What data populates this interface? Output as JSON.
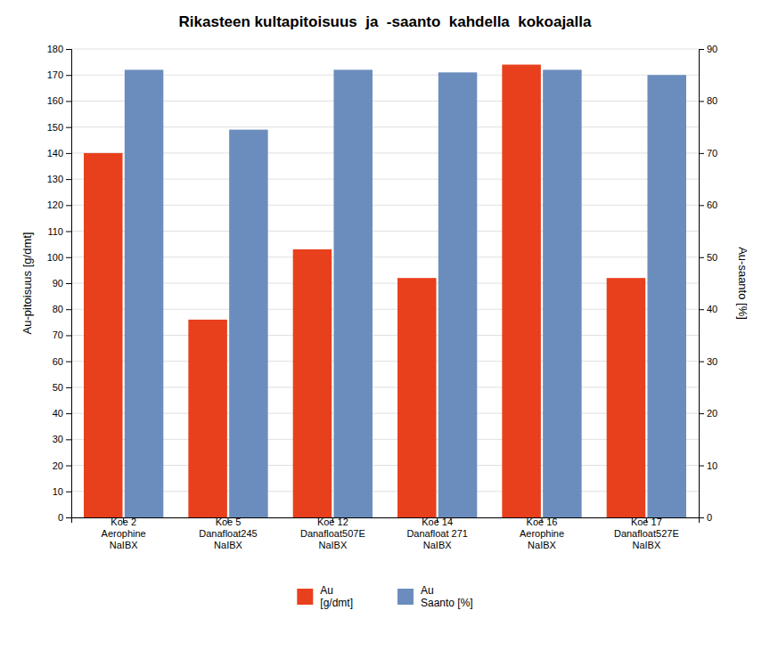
{
  "chart_data": {
    "type": "bar",
    "title": "Rikasteen kultapitoisuus  ja  -saanto  kahdella  kokoajalla",
    "ylabel": "Au-pitoisuus [g/dmt]",
    "y2label": "Au-saanto [%]",
    "categories": [
      "Koe 2\nAerophine\nNaIBX",
      "Koe 5\nDanafloat245\nNaIBX",
      "Koe 12\nDanafloat507E\nNaIBX",
      "Koe 14\nDanafloat 271\nNaIBX",
      "Koe 16\nAerophine\nNaIBX",
      "Koe 17\nDanafloat527E\nNaIBX"
    ],
    "series": [
      {
        "name": "Au\n[g/dmt]",
        "color": "#E8401C",
        "values": [
          140,
          76,
          103,
          92,
          174,
          92
        ]
      },
      {
        "name": "Au\nSaanto [%]",
        "color": "#6B8DBE",
        "values": [
          86,
          74.5,
          86,
          85.5,
          86,
          85
        ],
        "axis": "y2"
      }
    ],
    "ylim": [
      0,
      180
    ],
    "yticks": [
      0,
      10,
      20,
      30,
      40,
      50,
      60,
      70,
      80,
      90,
      100,
      110,
      120,
      130,
      140,
      150,
      160,
      170,
      180
    ],
    "y2lim": [
      0,
      90
    ],
    "y2ticks": [
      0,
      10,
      20,
      30,
      40,
      50,
      60,
      70,
      80,
      90
    ],
    "grid": true,
    "legend": "bottom"
  }
}
